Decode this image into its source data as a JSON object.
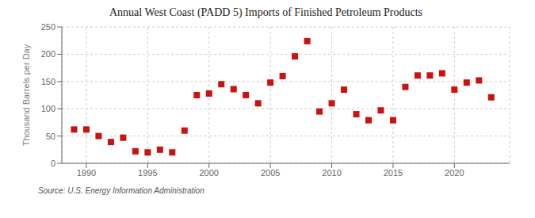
{
  "chart_data": {
    "type": "scatter",
    "title": "Annual West Coast (PADD 5) Imports of Finished Petroleum Products",
    "ylabel": "Thousand Barrels per Day",
    "annotations": [
      "Source: U.S. Energy Information Administration"
    ],
    "x": [
      1989,
      1990,
      1991,
      1992,
      1993,
      1994,
      1995,
      1996,
      1997,
      1998,
      1999,
      2000,
      2001,
      2002,
      2003,
      2004,
      2005,
      2006,
      2007,
      2008,
      2009,
      2010,
      2011,
      2012,
      2013,
      2014,
      2015,
      2016,
      2017,
      2018,
      2019,
      2020,
      2021,
      2022,
      2023
    ],
    "values": [
      62,
      62,
      50,
      39,
      47,
      22,
      20,
      25,
      20,
      60,
      125,
      128,
      145,
      136,
      125,
      110,
      148,
      160,
      196,
      224,
      95,
      110,
      135,
      90,
      79,
      97,
      79,
      140,
      161,
      161,
      165,
      135,
      148,
      152,
      121
    ],
    "color": "#cc1111",
    "marker": "square",
    "xlim": [
      1988.0,
      2024.5
    ],
    "ylim": [
      0,
      250
    ],
    "xticks": [
      1990,
      1995,
      2000,
      2005,
      2010,
      2015,
      2020
    ],
    "yticks": [
      0,
      50,
      100,
      150,
      200,
      250
    ],
    "grid": true
  }
}
